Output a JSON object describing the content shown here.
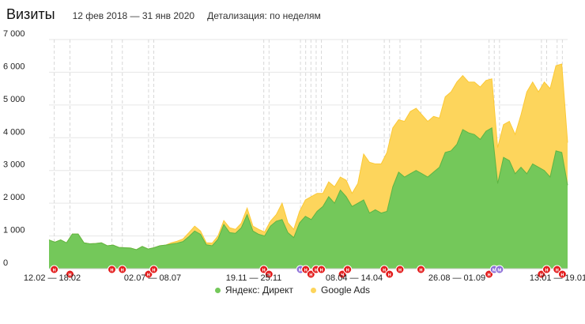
{
  "header": {
    "title": "Визиты",
    "period": "12 фев 2018 — 31 янв 2020",
    "detail": "Детализация: по неделям"
  },
  "colors": {
    "direct": "#74c85a",
    "direct_line": "#5db544",
    "ads": "#fdd55c",
    "ads_line": "#fcc934",
    "marker_red": "#e31c1c",
    "marker_purple": "#8c6ed8",
    "grid": "#e6e6e6",
    "dashed": "#d8d8d8"
  },
  "chart_data": {
    "type": "area",
    "stacked": true,
    "ylim": [
      0,
      7000
    ],
    "yticks": [
      "0",
      "1 000",
      "2 000",
      "3 000",
      "4 000",
      "5 000",
      "6 000",
      "7 000"
    ],
    "x_labels": [
      "12.02 — 18.02",
      "02.07 — 08.07",
      "19.11 — 25.11",
      "08.04 — 14.04",
      "26.08 — 01.09",
      "13.01 — 19.01"
    ],
    "grid": true,
    "legend_position": "bottom",
    "series": [
      {
        "name": "Яндекс: Директ",
        "values": [
          880,
          810,
          880,
          790,
          1060,
          1060,
          790,
          760,
          770,
          790,
          700,
          720,
          650,
          640,
          630,
          580,
          680,
          600,
          640,
          700,
          720,
          750,
          780,
          830,
          980,
          1150,
          1050,
          730,
          700,
          900,
          1350,
          1100,
          1080,
          1250,
          1650,
          1150,
          1050,
          1000,
          1300,
          1450,
          1500,
          1100,
          950,
          1400,
          1600,
          1500,
          1750,
          1900,
          2200,
          2000,
          2400,
          2200,
          1900,
          2000,
          2100,
          1700,
          1800,
          1700,
          1750,
          2500,
          2950,
          2800,
          2900,
          3000,
          2900,
          2800,
          2950,
          3100,
          3550,
          3600,
          3800,
          4250,
          4150,
          4100,
          3950,
          4200,
          4300,
          2600,
          3400,
          3300,
          2900,
          3100,
          2900,
          3200,
          3100,
          3000,
          2800,
          3600,
          3550,
          2550
        ]
      },
      {
        "name": "Google Ads",
        "values": [
          0,
          0,
          0,
          0,
          0,
          0,
          0,
          0,
          0,
          0,
          0,
          0,
          0,
          0,
          0,
          0,
          0,
          0,
          0,
          0,
          0,
          40,
          60,
          80,
          120,
          150,
          100,
          60,
          80,
          100,
          120,
          150,
          120,
          140,
          200,
          150,
          150,
          120,
          150,
          200,
          500,
          300,
          250,
          350,
          500,
          700,
          550,
          400,
          450,
          500,
          400,
          500,
          400,
          600,
          1400,
          1550,
          1400,
          1500,
          1800,
          1800,
          1600,
          1700,
          1900,
          1900,
          1800,
          1700,
          1700,
          1500,
          1700,
          1800,
          1900,
          1650,
          1550,
          1600,
          1600,
          1550,
          1500,
          1100,
          1000,
          1200,
          1200,
          1600,
          2500,
          2500,
          2300,
          2700,
          2700,
          2600,
          2700,
          1300
        ]
      }
    ],
    "markers": [
      {
        "i": 1,
        "label": "н",
        "color": "red"
      },
      {
        "i": 4,
        "label": "н",
        "color": "red"
      },
      {
        "i": 12,
        "label": "н",
        "color": "red"
      },
      {
        "i": 14,
        "label": "н",
        "color": "red"
      },
      {
        "i": 19,
        "label": "н",
        "color": "red"
      },
      {
        "i": 20,
        "label": "н",
        "color": "red"
      },
      {
        "i": 41,
        "label": "н",
        "color": "red"
      },
      {
        "i": 42,
        "label": "н",
        "color": "red"
      },
      {
        "i": 48,
        "label": "м",
        "color": "purple"
      },
      {
        "i": 49,
        "label": "н",
        "color": "red"
      },
      {
        "i": 50,
        "label": "н",
        "color": "red"
      },
      {
        "i": 51,
        "label": "н",
        "color": "red"
      },
      {
        "i": 52,
        "label": "н",
        "color": "red"
      },
      {
        "i": 56,
        "label": "н",
        "color": "red"
      },
      {
        "i": 57,
        "label": "н",
        "color": "red"
      },
      {
        "i": 64,
        "label": "н",
        "color": "red"
      },
      {
        "i": 65,
        "label": "н",
        "color": "red"
      },
      {
        "i": 67,
        "label": "н",
        "color": "red"
      },
      {
        "i": 71,
        "label": "н",
        "color": "red"
      },
      {
        "i": 84,
        "label": "н",
        "color": "red"
      },
      {
        "i": 85,
        "label": "м",
        "color": "purple"
      },
      {
        "i": 86,
        "label": "м",
        "color": "purple"
      },
      {
        "i": 94,
        "label": "н",
        "color": "red"
      },
      {
        "i": 95,
        "label": "н",
        "color": "red"
      },
      {
        "i": 97,
        "label": "н",
        "color": "red"
      },
      {
        "i": 98,
        "label": "н",
        "color": "red"
      }
    ]
  },
  "legend": {
    "items": [
      {
        "label": "Яндекс: Директ",
        "color": "#74c85a"
      },
      {
        "label": "Google Ads",
        "color": "#fdd55c"
      }
    ]
  }
}
